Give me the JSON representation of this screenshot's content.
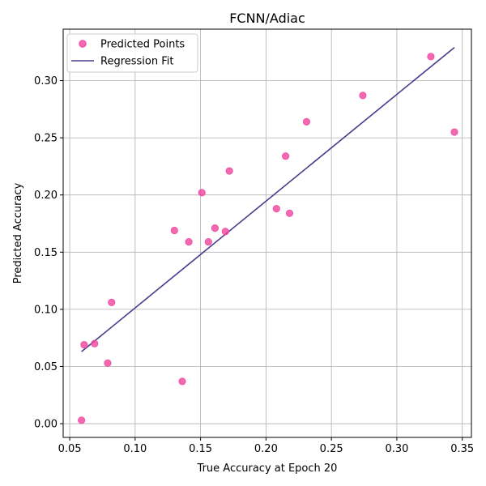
{
  "chart_data": {
    "type": "scatter",
    "title": "FCNN/Adiac",
    "xlabel": "True Accuracy at Epoch 20",
    "ylabel": "Predicted Accuracy",
    "xlim": [
      0.045,
      0.357
    ],
    "ylim": [
      -0.012,
      0.345
    ],
    "xticks": [
      0.05,
      0.1,
      0.15,
      0.2,
      0.25,
      0.3,
      0.35
    ],
    "xtick_labels": [
      "0.05",
      "0.10",
      "0.15",
      "0.20",
      "0.25",
      "0.30",
      "0.35"
    ],
    "yticks": [
      0.0,
      0.05,
      0.1,
      0.15,
      0.2,
      0.25,
      0.3
    ],
    "ytick_labels": [
      "0.00",
      "0.05",
      "0.10",
      "0.15",
      "0.20",
      "0.25",
      "0.30"
    ],
    "grid": true,
    "legend_position": "top-left",
    "series": [
      {
        "name": "Predicted Points",
        "kind": "scatter",
        "color": "#f0449e",
        "x": [
          0.059,
          0.061,
          0.069,
          0.079,
          0.082,
          0.13,
          0.136,
          0.141,
          0.151,
          0.156,
          0.161,
          0.169,
          0.172,
          0.208,
          0.215,
          0.218,
          0.231,
          0.274,
          0.326,
          0.344
        ],
        "y": [
          0.003,
          0.069,
          0.07,
          0.053,
          0.106,
          0.169,
          0.037,
          0.159,
          0.202,
          0.159,
          0.171,
          0.168,
          0.221,
          0.188,
          0.234,
          0.184,
          0.264,
          0.287,
          0.321,
          0.255
        ]
      },
      {
        "name": "Regression Fit",
        "kind": "line",
        "color": "#483d8b",
        "x": [
          0.059,
          0.344
        ],
        "y": [
          0.063,
          0.329
        ]
      }
    ]
  }
}
